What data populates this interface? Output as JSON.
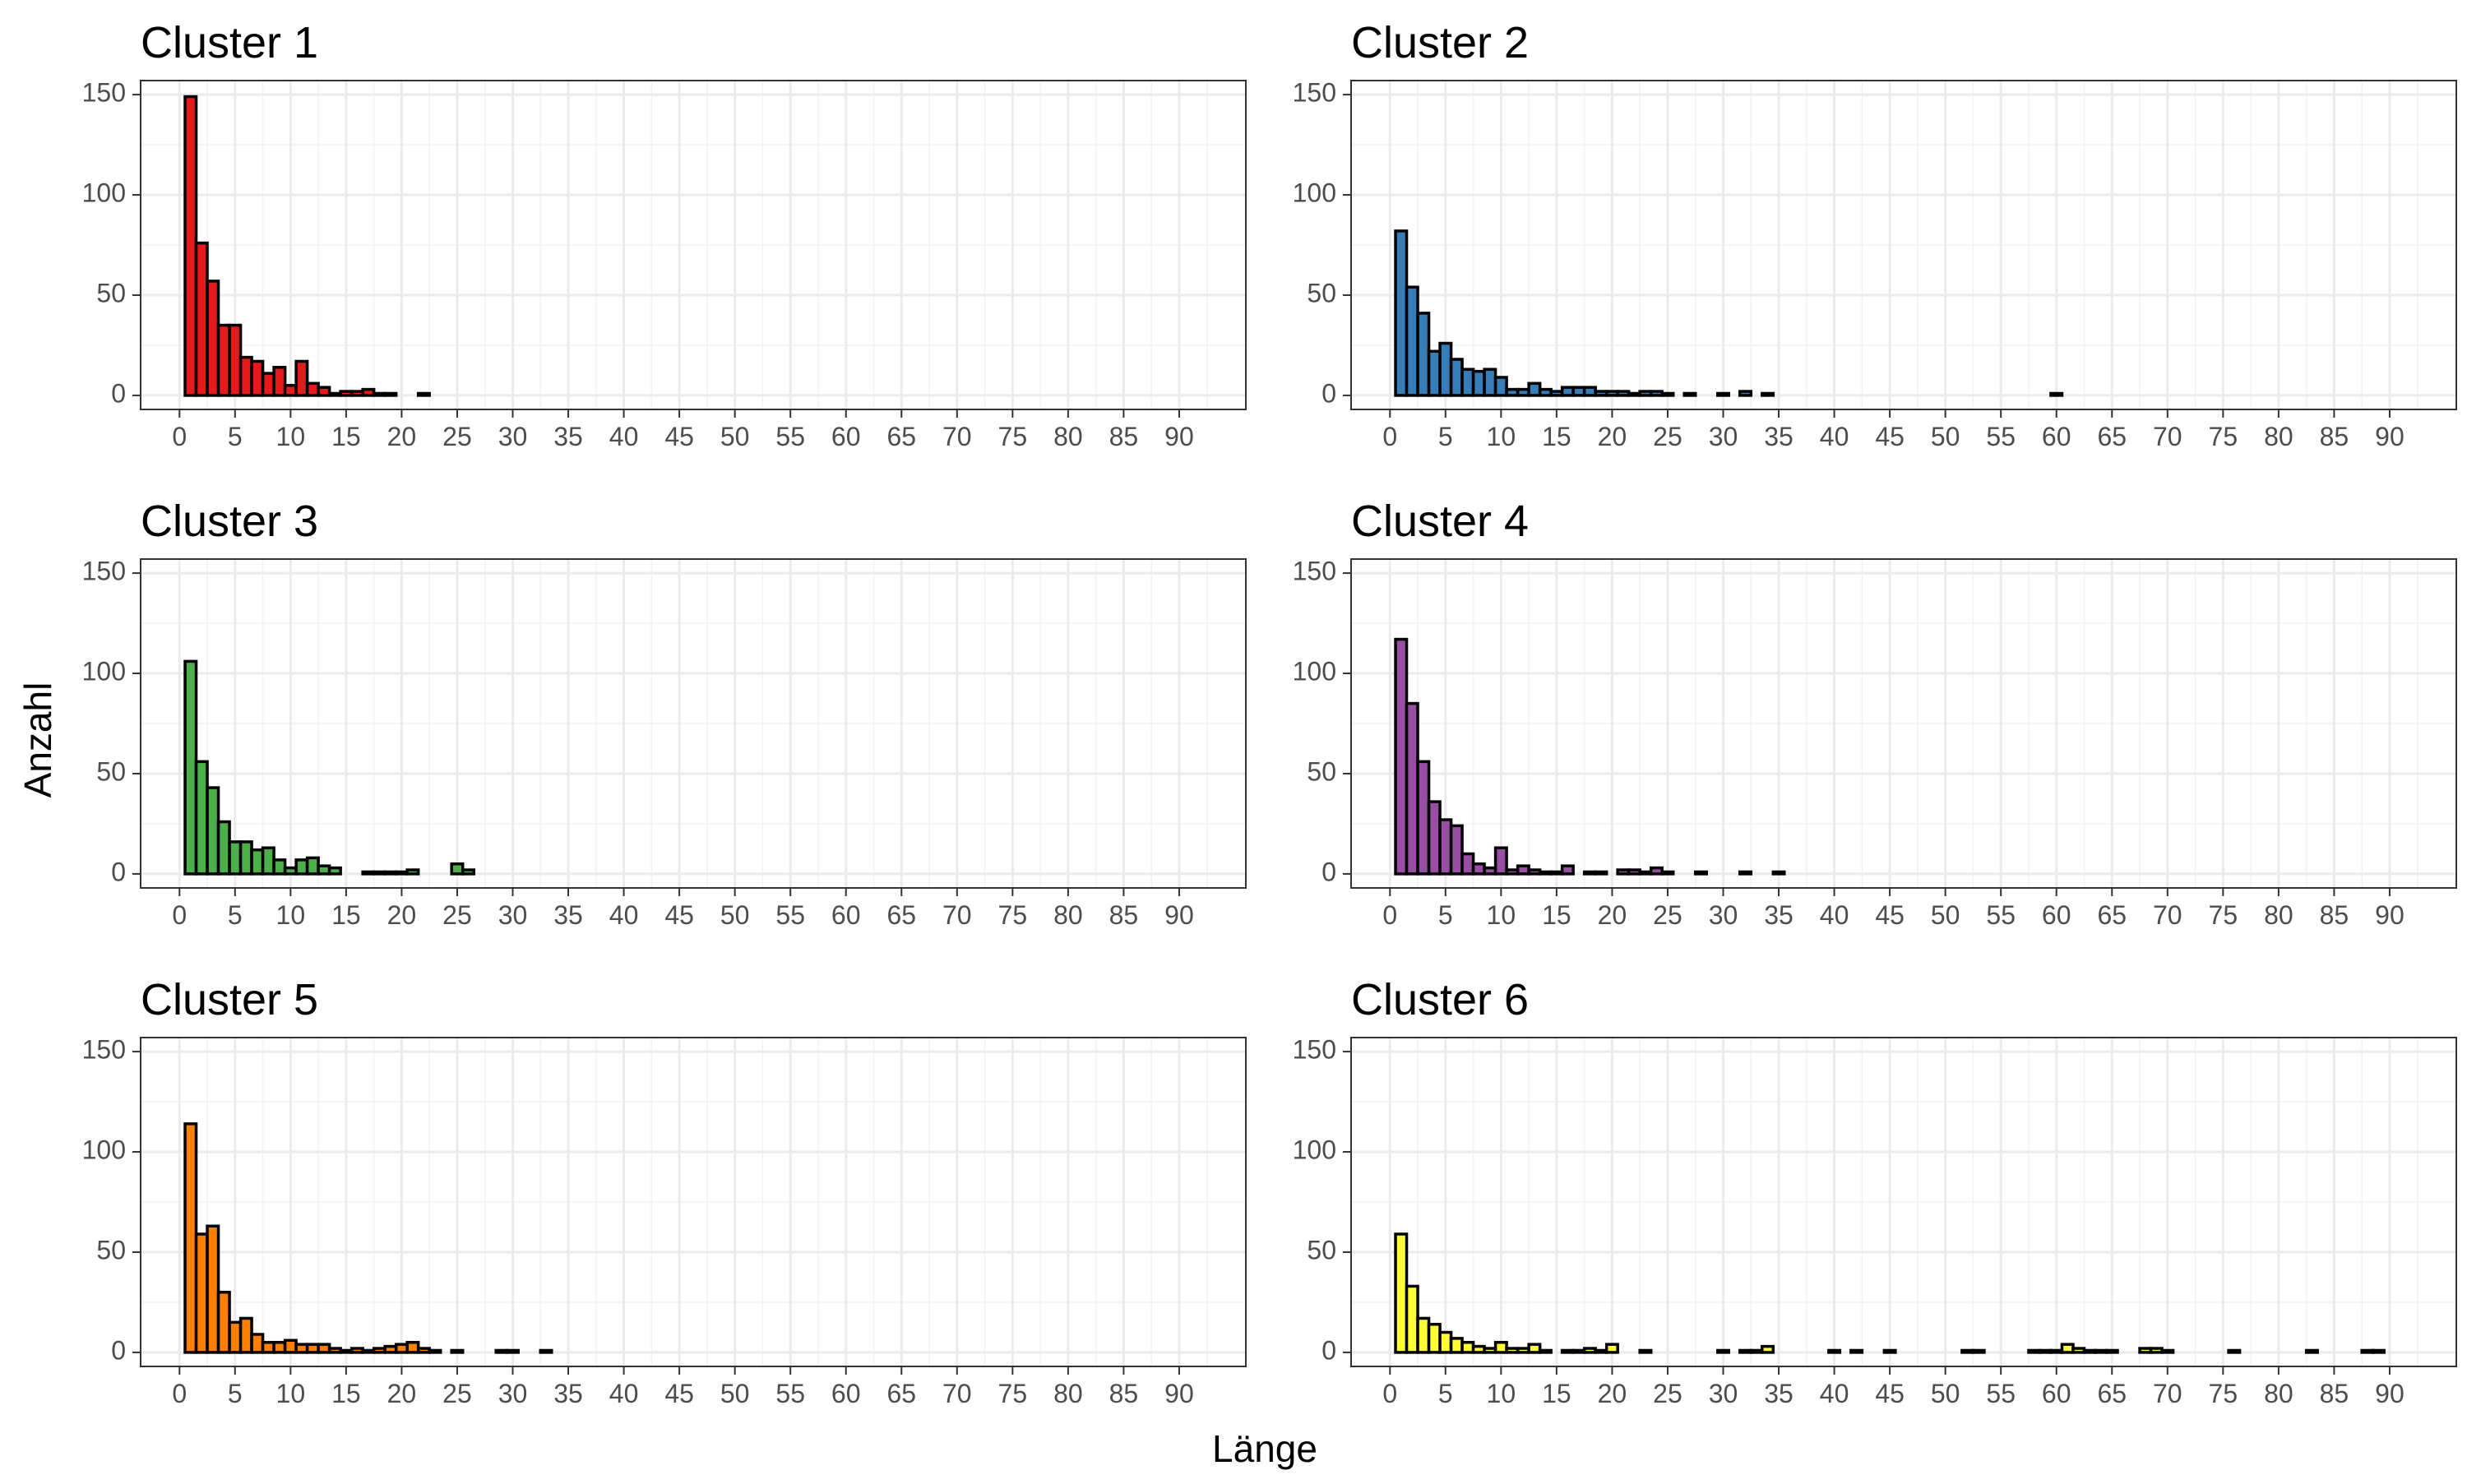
{
  "chart_data": {
    "type": "bar",
    "subtype": "faceted-histogram",
    "xlabel": "Länge",
    "ylabel": "Anzahl",
    "xlim": [
      -3.5,
      96
    ],
    "ylim": [
      -7,
      157
    ],
    "x_ticks": [
      "0",
      "5",
      "10",
      "15",
      "20",
      "25",
      "30",
      "35",
      "40",
      "45",
      "50",
      "55",
      "60",
      "65",
      "70",
      "75",
      "80",
      "85",
      "90"
    ],
    "y_ticks": [
      "0",
      "50",
      "100",
      "150"
    ],
    "grid": true,
    "bin_width": 1,
    "bar_outline": "#000000",
    "panels": [
      {
        "title": "Cluster  1",
        "color": "#E41A1C",
        "bins": [
          [
            1,
            149
          ],
          [
            2,
            76
          ],
          [
            3,
            57
          ],
          [
            4,
            35
          ],
          [
            5,
            35
          ],
          [
            6,
            19
          ],
          [
            7,
            17
          ],
          [
            8,
            11
          ],
          [
            9,
            14
          ],
          [
            10,
            5
          ],
          [
            11,
            17
          ],
          [
            12,
            6
          ],
          [
            13,
            4
          ],
          [
            14,
            1
          ],
          [
            15,
            2
          ],
          [
            16,
            2
          ],
          [
            17,
            3
          ],
          [
            18,
            1
          ],
          [
            19,
            1
          ],
          [
            22,
            1
          ]
        ]
      },
      {
        "title": "Cluster  2",
        "color": "#377EB8",
        "bins": [
          [
            1,
            82
          ],
          [
            2,
            54
          ],
          [
            3,
            41
          ],
          [
            4,
            22
          ],
          [
            5,
            26
          ],
          [
            6,
            18
          ],
          [
            7,
            13
          ],
          [
            8,
            12
          ],
          [
            9,
            13
          ],
          [
            10,
            9
          ],
          [
            11,
            3
          ],
          [
            12,
            3
          ],
          [
            13,
            6
          ],
          [
            14,
            3
          ],
          [
            15,
            2
          ],
          [
            16,
            4
          ],
          [
            17,
            4
          ],
          [
            18,
            4
          ],
          [
            19,
            2
          ],
          [
            20,
            2
          ],
          [
            21,
            2
          ],
          [
            22,
            1
          ],
          [
            23,
            2
          ],
          [
            24,
            2
          ],
          [
            25,
            1
          ],
          [
            27,
            1
          ],
          [
            30,
            1
          ],
          [
            32,
            2
          ],
          [
            34,
            1
          ],
          [
            60,
            1
          ]
        ]
      },
      {
        "title": "Cluster  3",
        "color": "#4DAF4A",
        "bins": [
          [
            1,
            106
          ],
          [
            2,
            56
          ],
          [
            3,
            43
          ],
          [
            4,
            26
          ],
          [
            5,
            16
          ],
          [
            6,
            16
          ],
          [
            7,
            12
          ],
          [
            8,
            13
          ],
          [
            9,
            7
          ],
          [
            10,
            3
          ],
          [
            11,
            7
          ],
          [
            12,
            8
          ],
          [
            13,
            4
          ],
          [
            14,
            3
          ],
          [
            17,
            1
          ],
          [
            18,
            1
          ],
          [
            19,
            1
          ],
          [
            20,
            1
          ],
          [
            21,
            2
          ],
          [
            25,
            5
          ],
          [
            26,
            2
          ]
        ]
      },
      {
        "title": "Cluster  4",
        "color": "#984EA3",
        "bins": [
          [
            1,
            117
          ],
          [
            2,
            85
          ],
          [
            3,
            56
          ],
          [
            4,
            36
          ],
          [
            5,
            27
          ],
          [
            6,
            24
          ],
          [
            7,
            10
          ],
          [
            8,
            5
          ],
          [
            9,
            3
          ],
          [
            10,
            13
          ],
          [
            11,
            2
          ],
          [
            12,
            4
          ],
          [
            13,
            2
          ],
          [
            14,
            1
          ],
          [
            15,
            1
          ],
          [
            16,
            4
          ],
          [
            18,
            1
          ],
          [
            19,
            1
          ],
          [
            21,
            2
          ],
          [
            22,
            2
          ],
          [
            23,
            1
          ],
          [
            24,
            3
          ],
          [
            25,
            1
          ],
          [
            28,
            1
          ],
          [
            32,
            1
          ],
          [
            35,
            1
          ]
        ]
      },
      {
        "title": "Cluster  5",
        "color": "#FF7F00",
        "bins": [
          [
            1,
            114
          ],
          [
            2,
            59
          ],
          [
            3,
            63
          ],
          [
            4,
            30
          ],
          [
            5,
            15
          ],
          [
            6,
            17
          ],
          [
            7,
            9
          ],
          [
            8,
            5
          ],
          [
            9,
            5
          ],
          [
            10,
            6
          ],
          [
            11,
            4
          ],
          [
            12,
            4
          ],
          [
            13,
            4
          ],
          [
            14,
            2
          ],
          [
            15,
            1
          ],
          [
            16,
            2
          ],
          [
            17,
            1
          ],
          [
            18,
            2
          ],
          [
            19,
            3
          ],
          [
            20,
            4
          ],
          [
            21,
            5
          ],
          [
            22,
            2
          ],
          [
            23,
            1
          ],
          [
            25,
            1
          ],
          [
            29,
            1
          ],
          [
            30,
            1
          ],
          [
            33,
            1
          ]
        ]
      },
      {
        "title": "Cluster  6",
        "color": "#FFFF33",
        "bins": [
          [
            1,
            59
          ],
          [
            2,
            33
          ],
          [
            3,
            17
          ],
          [
            4,
            14
          ],
          [
            5,
            10
          ],
          [
            6,
            7
          ],
          [
            7,
            5
          ],
          [
            8,
            3
          ],
          [
            9,
            2
          ],
          [
            10,
            5
          ],
          [
            11,
            2
          ],
          [
            12,
            2
          ],
          [
            13,
            4
          ],
          [
            14,
            1
          ],
          [
            16,
            1
          ],
          [
            17,
            1
          ],
          [
            18,
            2
          ],
          [
            19,
            1
          ],
          [
            20,
            4
          ],
          [
            23,
            1
          ],
          [
            30,
            1
          ],
          [
            32,
            1
          ],
          [
            33,
            1
          ],
          [
            34,
            3
          ],
          [
            40,
            1
          ],
          [
            42,
            1
          ],
          [
            45,
            1
          ],
          [
            52,
            1
          ],
          [
            53,
            1
          ],
          [
            58,
            1
          ],
          [
            59,
            1
          ],
          [
            60,
            1
          ],
          [
            61,
            4
          ],
          [
            62,
            2
          ],
          [
            63,
            1
          ],
          [
            64,
            1
          ],
          [
            65,
            1
          ],
          [
            68,
            2
          ],
          [
            69,
            2
          ],
          [
            70,
            1
          ],
          [
            76,
            1
          ],
          [
            83,
            1
          ],
          [
            88,
            1
          ],
          [
            89,
            1
          ]
        ]
      }
    ]
  }
}
